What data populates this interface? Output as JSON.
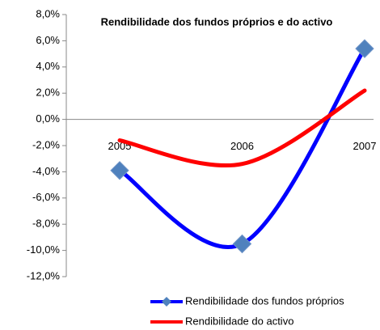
{
  "chart_data": {
    "type": "line",
    "title": "Rendibilidade dos fundos próprios  e do activo",
    "categories": [
      "2005",
      "2006",
      "2007"
    ],
    "series": [
      {
        "name": "Rendibilidade dos fundos próprios",
        "color": "#0000ff",
        "marker_color": "#4f81bd",
        "values": [
          -3.9,
          -9.5,
          5.4
        ]
      },
      {
        "name": "Rendibilidade do activo",
        "color": "#ff0000",
        "values": [
          -1.6,
          -3.4,
          2.2
        ]
      }
    ],
    "ylim": [
      -12,
      8
    ],
    "yticks": [
      {
        "value": -12,
        "label": "-12,0%"
      },
      {
        "value": -10,
        "label": "-10,0%"
      },
      {
        "value": -8,
        "label": "-8,0%"
      },
      {
        "value": -6,
        "label": "-6,0%"
      },
      {
        "value": -4,
        "label": "-4,0%"
      },
      {
        "value": -2,
        "label": "-2,0%"
      },
      {
        "value": 0,
        "label": "0,0%"
      },
      {
        "value": 2,
        "label": "2,0%"
      },
      {
        "value": 4,
        "label": "4,0%"
      },
      {
        "value": 6,
        "label": "6,0%"
      },
      {
        "value": 8,
        "label": "8,0%"
      }
    ],
    "legend": "bottom-right",
    "smooth": true
  }
}
